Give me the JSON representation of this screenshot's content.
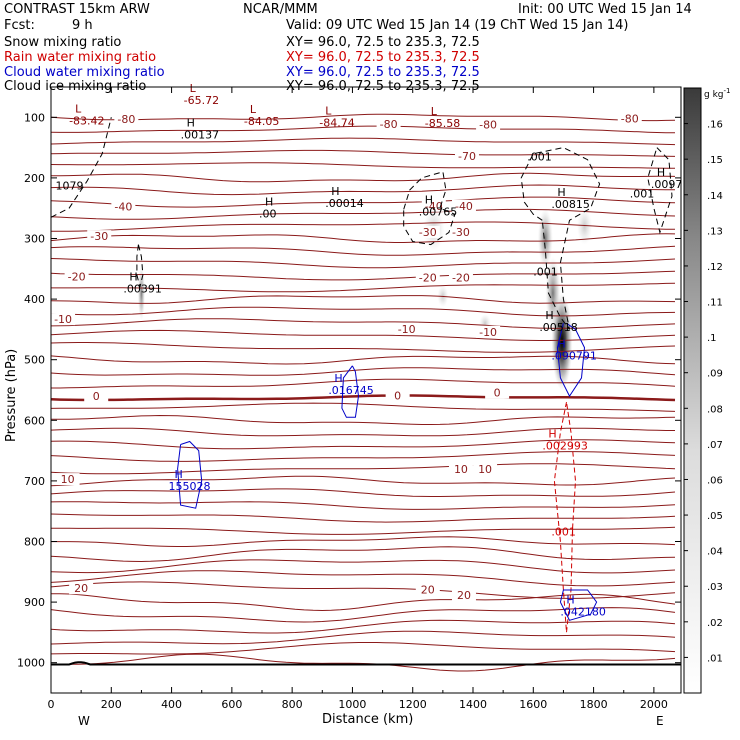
{
  "header": {
    "model": "CONTRAST 15km ARW",
    "org": "NCAR/MMM",
    "init": "Init: 00 UTC Wed 15 Jan 14",
    "fcst_label": "Fcst:",
    "fcst_value": "9 h",
    "valid": "Valid: 09 UTC Wed 15 Jan 14 (19 ChT Wed 15 Jan 14)"
  },
  "fields": [
    {
      "name": "Snow mixing ratio",
      "xy": "XY=  96.0, 72.5 to 235.3, 72.5",
      "color": "#000000"
    },
    {
      "name": "Rain water mixing ratio",
      "xy": "XY=  96.0, 72.5 to 235.3, 72.5",
      "color": "#d00000"
    },
    {
      "name": "Cloud water mixing ratio",
      "xy": "XY=  96.0, 72.5 to 235.3, 72.5",
      "color": "#0000c8"
    },
    {
      "name": "Cloud ice mixing ratio",
      "xy": "XY=  96.0, 72.5 to 235.3, 72.5",
      "color": "#000000"
    }
  ],
  "chart_data": {
    "type": "cross-section",
    "xlabel": "Distance (km)",
    "ylabel": "Pressure (hPa)",
    "xlim": [
      0,
      2090
    ],
    "ylim": [
      1050,
      50
    ],
    "xticks": [
      0,
      200,
      400,
      600,
      800,
      1000,
      1200,
      1400,
      1600,
      1800,
      2000
    ],
    "yticks": [
      100,
      200,
      300,
      400,
      500,
      600,
      700,
      800,
      900,
      1000
    ],
    "west_label": "W",
    "east_label": "E",
    "colorbar": {
      "unit": "g kg",
      "unit_exp": "-1",
      "levels": [
        ".01",
        ".02",
        ".03",
        ".04",
        ".05",
        ".06",
        ".07",
        ".08",
        ".09",
        ".1",
        ".11",
        ".12",
        ".13",
        ".14",
        ".15",
        ".16"
      ],
      "values": [
        0.01,
        0.02,
        0.03,
        0.04,
        0.05,
        0.06,
        0.07,
        0.08,
        0.09,
        0.1,
        0.11,
        0.12,
        0.13,
        0.14,
        0.15,
        0.16
      ]
    },
    "snow_max": {
      "x": 1690,
      "p": 470,
      "value": 0.16
    },
    "temperature_contours": [
      {
        "label": "-80",
        "x": 250,
        "p": 108
      },
      {
        "label": "-80",
        "x": 1120,
        "p": 116
      },
      {
        "label": "-80",
        "x": 1450,
        "p": 117
      },
      {
        "label": "-80",
        "x": 1920,
        "p": 107
      },
      {
        "label": "-70",
        "x": 1380,
        "p": 169
      },
      {
        "label": "-40",
        "x": 240,
        "p": 252
      },
      {
        "label": "-40",
        "x": 1270,
        "p": 251
      },
      {
        "label": "-40",
        "x": 1370,
        "p": 251
      },
      {
        "label": "-30",
        "x": 160,
        "p": 301
      },
      {
        "label": "-30",
        "x": 1250,
        "p": 294
      },
      {
        "label": "-30",
        "x": 1360,
        "p": 294
      },
      {
        "label": "-20",
        "x": 85,
        "p": 368
      },
      {
        "label": "-20",
        "x": 1250,
        "p": 369
      },
      {
        "label": "-20",
        "x": 1360,
        "p": 369
      },
      {
        "label": "-10",
        "x": 40,
        "p": 438
      },
      {
        "label": "-10",
        "x": 1180,
        "p": 454
      },
      {
        "label": "-10",
        "x": 1450,
        "p": 459
      },
      {
        "label": "0",
        "x": 150,
        "p": 565
      },
      {
        "label": "0",
        "x": 1150,
        "p": 564
      },
      {
        "label": "0",
        "x": 1480,
        "p": 559
      },
      {
        "label": "10",
        "x": 55,
        "p": 702
      },
      {
        "label": "10",
        "x": 1360,
        "p": 685
      },
      {
        "label": "10",
        "x": 1440,
        "p": 685
      },
      {
        "label": "20",
        "x": 100,
        "p": 882
      },
      {
        "label": "20",
        "x": 1250,
        "p": 884
      },
      {
        "label": "20",
        "x": 1370,
        "p": 893
      }
    ],
    "extrema": [
      {
        "kind": "L",
        "value": "-65.72",
        "x": 440,
        "p": 78,
        "color": "#8b0000"
      },
      {
        "kind": "L",
        "value": "-83.42",
        "x": 60,
        "p": 112,
        "color": "#8b0000"
      },
      {
        "kind": "L",
        "value": "-84.05",
        "x": 640,
        "p": 113,
        "color": "#8b0000"
      },
      {
        "kind": "L",
        "value": "-84.74",
        "x": 890,
        "p": 115,
        "color": "#8b0000"
      },
      {
        "kind": "L",
        "value": "-85.58",
        "x": 1240,
        "p": 116,
        "color": "#8b0000"
      },
      {
        "kind": "H",
        "value": ".00137",
        "x": 430,
        "p": 135,
        "color": "#000000"
      },
      {
        "kind": "H",
        "value": ".00014",
        "x": 910,
        "p": 248,
        "color": "#000000"
      },
      {
        "kind": "H",
        "value": ".00",
        "x": 690,
        "p": 265,
        "color": "#000000"
      },
      {
        "kind": "H",
        "value": ".00765",
        "x": 1220,
        "p": 262,
        "color": "#000000"
      },
      {
        "kind": "H",
        "value": ".00815",
        "x": 1660,
        "p": 250,
        "color": "#000000"
      },
      {
        "kind": "H",
        "value": ".0097",
        "x": 1990,
        "p": 217,
        "color": "#000000"
      },
      {
        "kind": "H",
        "value": ".00391",
        "x": 240,
        "p": 389,
        "color": "#000000"
      },
      {
        "kind": "H",
        "value": ".00518",
        "x": 1620,
        "p": 453,
        "color": "#000000"
      },
      {
        "kind": "H",
        "value": ".090791",
        "x": 1660,
        "p": 500,
        "color": "#0000c8"
      },
      {
        "kind": "H",
        "value": ".016745",
        "x": 920,
        "p": 557,
        "color": "#0000c8"
      },
      {
        "kind": "H",
        "value": ".002993",
        "x": 1630,
        "p": 648,
        "color": "#d00000"
      },
      {
        "kind": "H",
        "value": "155028",
        "x": 390,
        "p": 715,
        "color": "#0000c8"
      },
      {
        "kind": "H",
        "value": ".042180",
        "x": 1690,
        "p": 922,
        "color": "#0000c8"
      }
    ],
    "contour_labels": [
      {
        "text": "1079",
        "x": 15,
        "p": 219,
        "color": "#000000"
      },
      {
        "text": ".001",
        "x": 1580,
        "p": 171,
        "color": "#000000"
      },
      {
        "text": ".001",
        "x": 1600,
        "p": 361,
        "color": "#000000"
      },
      {
        "text": ".001",
        "x": 1920,
        "p": 232,
        "color": "#000000"
      },
      {
        "text": ".001",
        "x": 1660,
        "p": 790,
        "color": "#d00000"
      }
    ]
  }
}
